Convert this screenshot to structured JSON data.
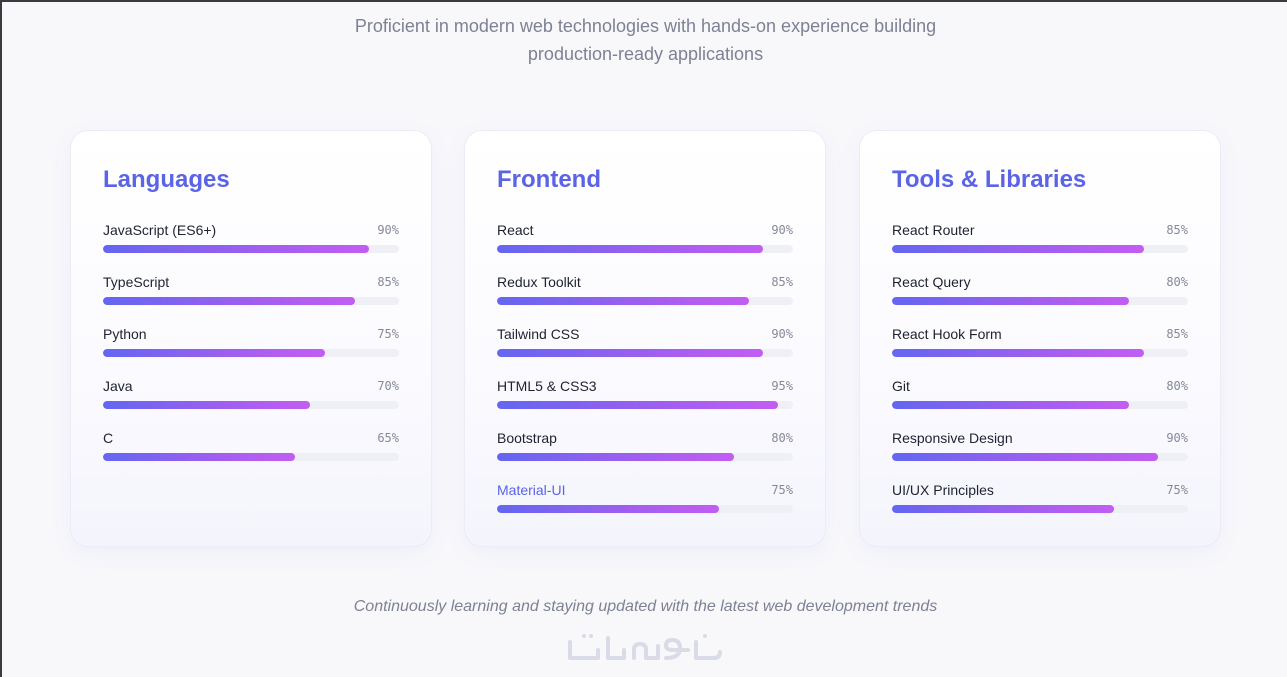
{
  "header": {
    "subtitle_line1": "Proficient in modern web technologies with hands-on experience building",
    "subtitle_line2": "production-ready applications"
  },
  "cards": [
    {
      "title": "Languages",
      "skills": [
        {
          "name": "JavaScript (ES6+)",
          "percent_label": "90%",
          "level": 90
        },
        {
          "name": "TypeScript",
          "percent_label": "85%",
          "level": 85
        },
        {
          "name": "Python",
          "percent_label": "75%",
          "level": 75
        },
        {
          "name": "Java",
          "percent_label": "70%",
          "level": 70
        },
        {
          "name": "C",
          "percent_label": "65%",
          "level": 65
        }
      ]
    },
    {
      "title": "Frontend",
      "skills": [
        {
          "name": "React",
          "percent_label": "90%",
          "level": 90
        },
        {
          "name": "Redux Toolkit",
          "percent_label": "85%",
          "level": 85
        },
        {
          "name": "Tailwind CSS",
          "percent_label": "90%",
          "level": 90
        },
        {
          "name": "HTML5 & CSS3",
          "percent_label": "95%",
          "level": 95
        },
        {
          "name": "Bootstrap",
          "percent_label": "80%",
          "level": 80
        },
        {
          "name": "Material-UI",
          "percent_label": "75%",
          "level": 75
        }
      ]
    },
    {
      "title": "Tools & Libraries",
      "skills": [
        {
          "name": "React Router",
          "percent_label": "85%",
          "level": 85
        },
        {
          "name": "React Query",
          "percent_label": "80%",
          "level": 80
        },
        {
          "name": "React Hook Form",
          "percent_label": "85%",
          "level": 85
        },
        {
          "name": "Git",
          "percent_label": "80%",
          "level": 80
        },
        {
          "name": "Responsive Design",
          "percent_label": "90%",
          "level": 90
        },
        {
          "name": "UI/UX Principles",
          "percent_label": "75%",
          "level": 75
        }
      ]
    }
  ],
  "footer": {
    "note": "Continuously learning and staying updated with the latest web development trends"
  },
  "watermark": {
    "text": "خمسات"
  },
  "colors": {
    "accent": "#5b63e6",
    "bar_start": "#6366f1",
    "bar_end": "#c35df2",
    "muted_text": "#7d8194"
  }
}
